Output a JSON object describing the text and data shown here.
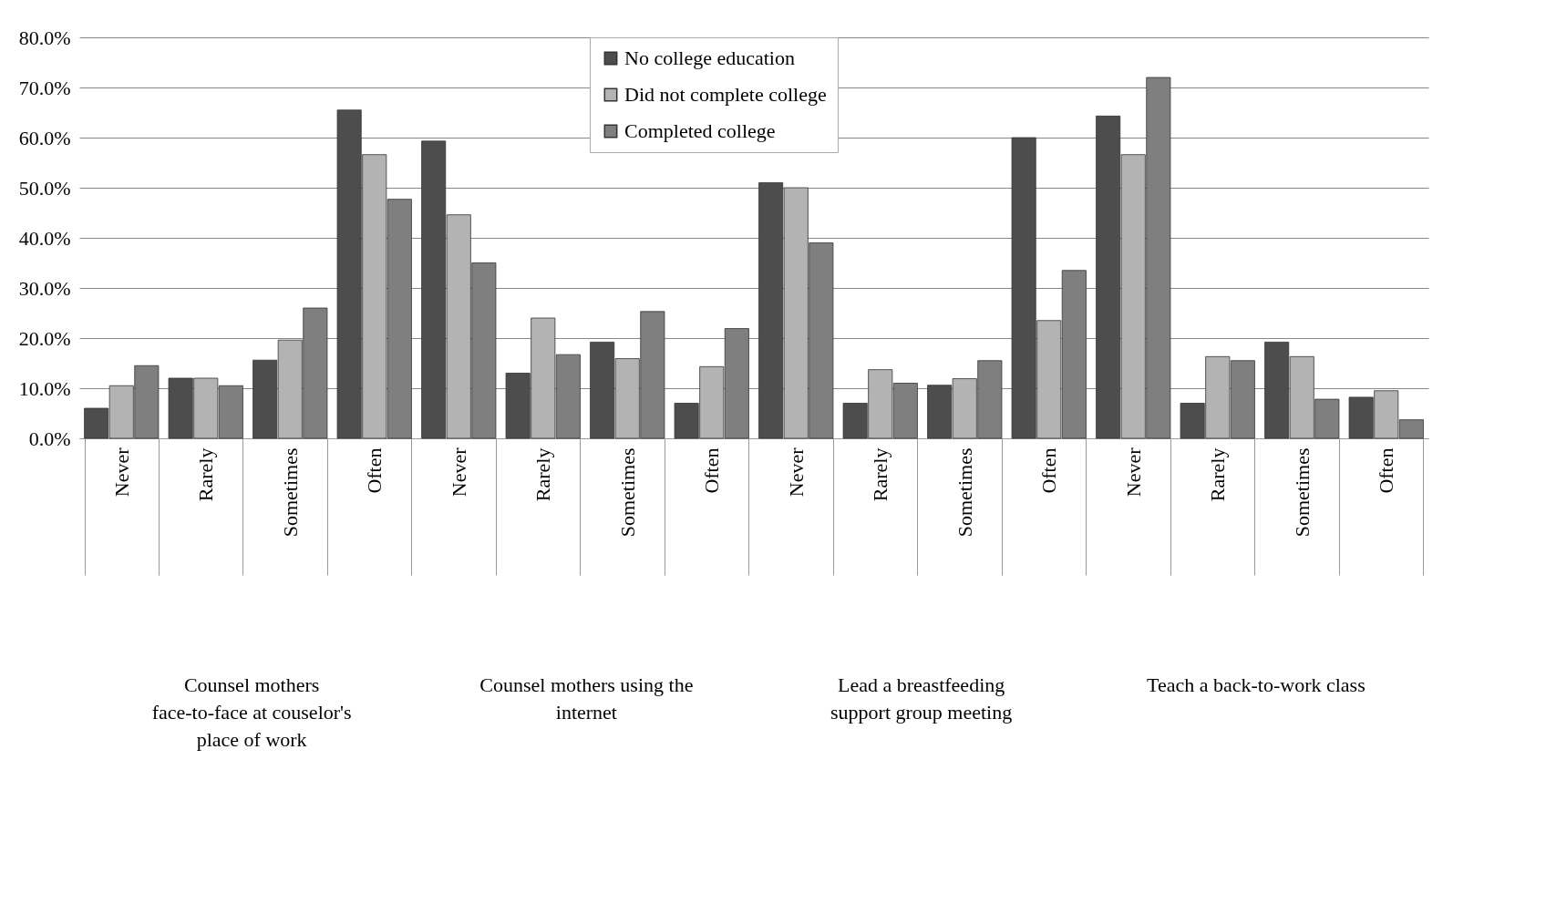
{
  "chart_data": {
    "type": "bar",
    "categories": [
      "Never",
      "Rarely",
      "Sometimes",
      "Often",
      "Never",
      "Rarely",
      "Sometimes",
      "Often",
      "Never",
      "Rarely",
      "Sometimes",
      "Often",
      "Never",
      "Rarely",
      "Sometimes",
      "Often"
    ],
    "series": [
      {
        "name": "No college education",
        "color": "#4d4d4d",
        "values": [
          6,
          12,
          15.6,
          65.5,
          59.3,
          13,
          19.2,
          7,
          51,
          7,
          10.6,
          60,
          64.3,
          7,
          19.2,
          8.2
        ]
      },
      {
        "name": "Did not complete college",
        "color": "#b3b3b3",
        "values": [
          10.5,
          12,
          19.6,
          56.6,
          44.6,
          24,
          15.9,
          14.3,
          50,
          13.7,
          11.9,
          23.5,
          56.6,
          16.3,
          16.3,
          9.5
        ]
      },
      {
        "name": "Completed college",
        "color": "#7f7f7f",
        "values": [
          14.5,
          10.5,
          26,
          47.7,
          35,
          16.7,
          25.3,
          21.9,
          39,
          11,
          15.5,
          33.5,
          72,
          15.5,
          7.8,
          3.7
        ]
      }
    ],
    "annotations": [
      "Counsel mothers face-to-face at couselor's place of work",
      "Counsel mothers using the internet",
      "Lead a breastfeeding support group meeting",
      "Teach a back-to-work class"
    ],
    "ylim": [
      0,
      80
    ],
    "yticks": [
      {
        "value": 0,
        "label": "0.0%"
      },
      {
        "value": 10,
        "label": "10.0%"
      },
      {
        "value": 20,
        "label": "20.0%"
      },
      {
        "value": 30,
        "label": "30.0%"
      },
      {
        "value": 40,
        "label": "40.0%"
      },
      {
        "value": 50,
        "label": "50.0%"
      },
      {
        "value": 60,
        "label": "60.0%"
      },
      {
        "value": 70,
        "label": "70.0%"
      },
      {
        "value": 80,
        "label": "80.0%"
      }
    ],
    "grid": true,
    "legend": "top"
  }
}
